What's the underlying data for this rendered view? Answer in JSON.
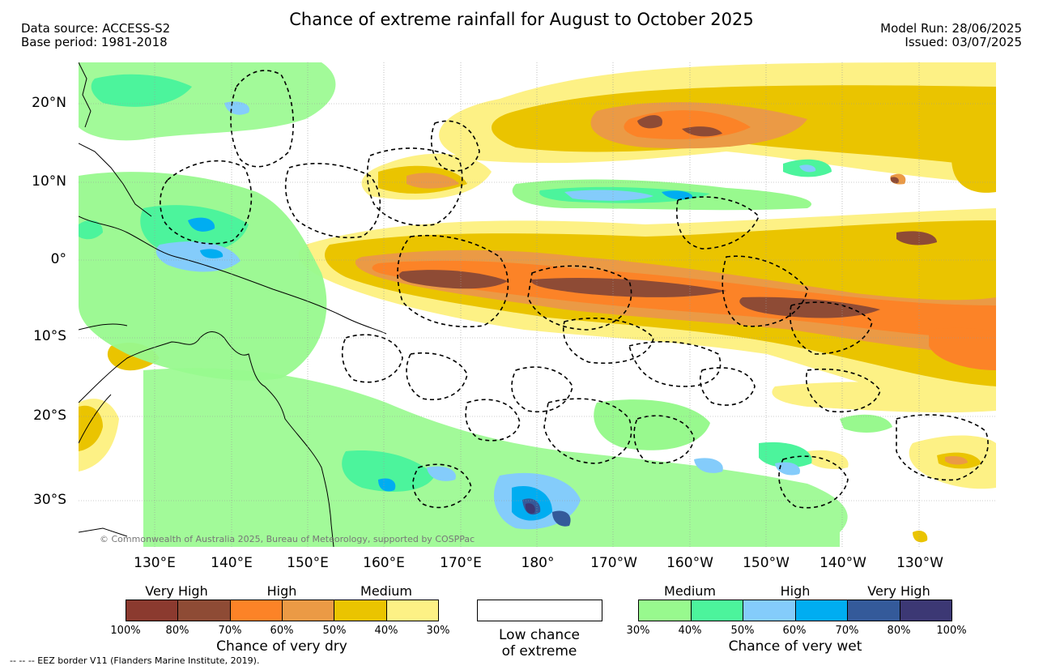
{
  "title": "Chance of extreme rainfall for August to October 2025",
  "meta_left": {
    "source": "Data source: ACCESS-S2",
    "base": "Base period: 1981-2018"
  },
  "meta_right": {
    "model_run": "Model Run: 28/06/2025",
    "issued": "Issued: 03/07/2025"
  },
  "map": {
    "lat_labels": [
      "20°N",
      "10°N",
      "0°",
      "10°S",
      "20°S",
      "30°S"
    ],
    "lon_labels": [
      "130°E",
      "140°E",
      "150°E",
      "160°E",
      "170°E",
      "180°",
      "170°W",
      "160°W",
      "150°W",
      "140°W",
      "130°W"
    ],
    "copyright": "© Commonwealth of Australia 2025, Bureau of Meteorology, supported by COSPPac"
  },
  "legend": {
    "dry": {
      "categories": [
        "Very High",
        "High",
        "Medium"
      ],
      "percents": [
        "100%",
        "80%",
        "70%",
        "60%",
        "50%",
        "40%",
        "30%"
      ],
      "colors": [
        "#8b3a2f",
        "#8e4b35",
        "#fc8327",
        "#eb9a45",
        "#eac400",
        "#fdf185"
      ],
      "caption": "Chance of very dry"
    },
    "neutral": {
      "caption_line1": "Low chance",
      "caption_line2": "of extreme",
      "color": "#ffffff"
    },
    "wet": {
      "categories": [
        "Medium",
        "High",
        "Very High"
      ],
      "percents": [
        "30%",
        "40%",
        "50%",
        "60%",
        "70%",
        "80%",
        "100%"
      ],
      "colors": [
        "#98f98e",
        "#4cf49c",
        "#84ccfb",
        "#00adf1",
        "#345a9a",
        "#3c3874"
      ],
      "caption": "Chance of very wet"
    }
  },
  "eez_note": "-- -- -- EEZ border V11 (Flanders Marine Institute, 2019)."
}
